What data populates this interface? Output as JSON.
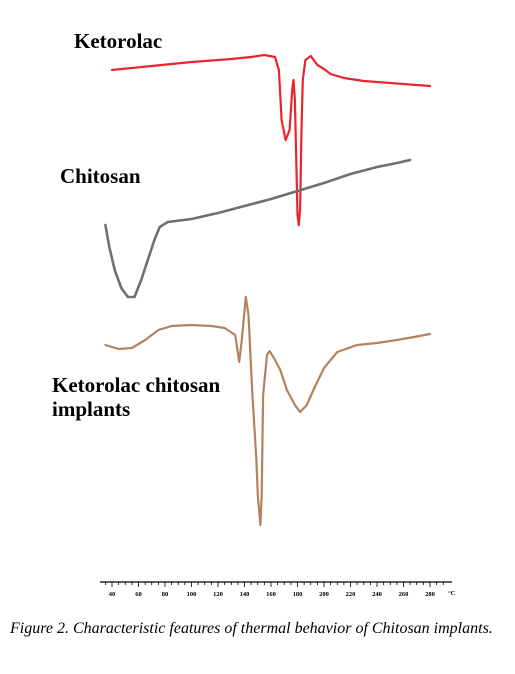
{
  "caption": {
    "label": "Figure 2.",
    "text": "Characteristic features of thermal behavior of Chitosan implants."
  },
  "chart_data": {
    "type": "line",
    "title": "",
    "xlabel": "",
    "ylabel": "",
    "x_unit": "°C",
    "xlim": [
      30,
      290
    ],
    "ticks": [
      40,
      60,
      80,
      100,
      120,
      140,
      160,
      180,
      200,
      220,
      240,
      260,
      280
    ],
    "grid": false,
    "legend": "none",
    "series": [
      {
        "name": "Ketorolac",
        "color": "#e8252b",
        "points": [
          [
            40,
            0.0
          ],
          [
            70,
            4
          ],
          [
            100,
            8
          ],
          [
            130,
            11
          ],
          [
            145,
            13
          ],
          [
            155,
            15
          ],
          [
            163,
            13
          ],
          [
            166,
            0
          ],
          [
            168,
            -50
          ],
          [
            171,
            -70
          ],
          [
            174,
            -60
          ],
          [
            176,
            -20
          ],
          [
            177,
            -10
          ],
          [
            178,
            -30
          ],
          [
            180,
            -145
          ],
          [
            181,
            -155
          ],
          [
            182,
            -140
          ],
          [
            183,
            -60
          ],
          [
            184,
            -10
          ],
          [
            186,
            10
          ],
          [
            190,
            14
          ],
          [
            195,
            5
          ],
          [
            200,
            1
          ],
          [
            205,
            -4
          ],
          [
            215,
            -8
          ],
          [
            230,
            -11
          ],
          [
            250,
            -13
          ],
          [
            270,
            -15
          ],
          [
            280,
            -16
          ]
        ]
      },
      {
        "name": "Chitosan",
        "color": "#707070",
        "points": [
          [
            35,
            0
          ],
          [
            38,
            -22
          ],
          [
            42,
            -45
          ],
          [
            47,
            -63
          ],
          [
            52,
            -72
          ],
          [
            57,
            -72
          ],
          [
            62,
            -55
          ],
          [
            67,
            -35
          ],
          [
            72,
            -15
          ],
          [
            76,
            -2
          ],
          [
            82,
            3
          ],
          [
            100,
            6
          ],
          [
            120,
            12
          ],
          [
            140,
            19
          ],
          [
            160,
            26
          ],
          [
            180,
            34
          ],
          [
            200,
            42
          ],
          [
            220,
            51
          ],
          [
            240,
            58
          ],
          [
            255,
            62
          ],
          [
            265,
            65
          ]
        ]
      },
      {
        "name": "Ketorolac chitosan implants",
        "color": "#b5825e",
        "points": [
          [
            35,
            0
          ],
          [
            45,
            -4
          ],
          [
            55,
            -3
          ],
          [
            65,
            5
          ],
          [
            75,
            15
          ],
          [
            85,
            19
          ],
          [
            100,
            20
          ],
          [
            115,
            19
          ],
          [
            125,
            17
          ],
          [
            133,
            10
          ],
          [
            136,
            -17
          ],
          [
            138,
            5
          ],
          [
            141,
            48
          ],
          [
            143,
            30
          ],
          [
            146,
            -50
          ],
          [
            149,
            -115
          ],
          [
            150,
            -150
          ],
          [
            152,
            -180
          ],
          [
            153,
            -150
          ],
          [
            154,
            -50
          ],
          [
            157,
            -10
          ],
          [
            159,
            -6
          ],
          [
            163,
            -15
          ],
          [
            167,
            -25
          ],
          [
            172,
            -45
          ],
          [
            178,
            -60
          ],
          [
            182,
            -67
          ],
          [
            187,
            -60
          ],
          [
            192,
            -45
          ],
          [
            200,
            -23
          ],
          [
            210,
            -7
          ],
          [
            225,
            0
          ],
          [
            240,
            2
          ],
          [
            255,
            5
          ],
          [
            268,
            8
          ],
          [
            280,
            11
          ]
        ]
      }
    ]
  }
}
